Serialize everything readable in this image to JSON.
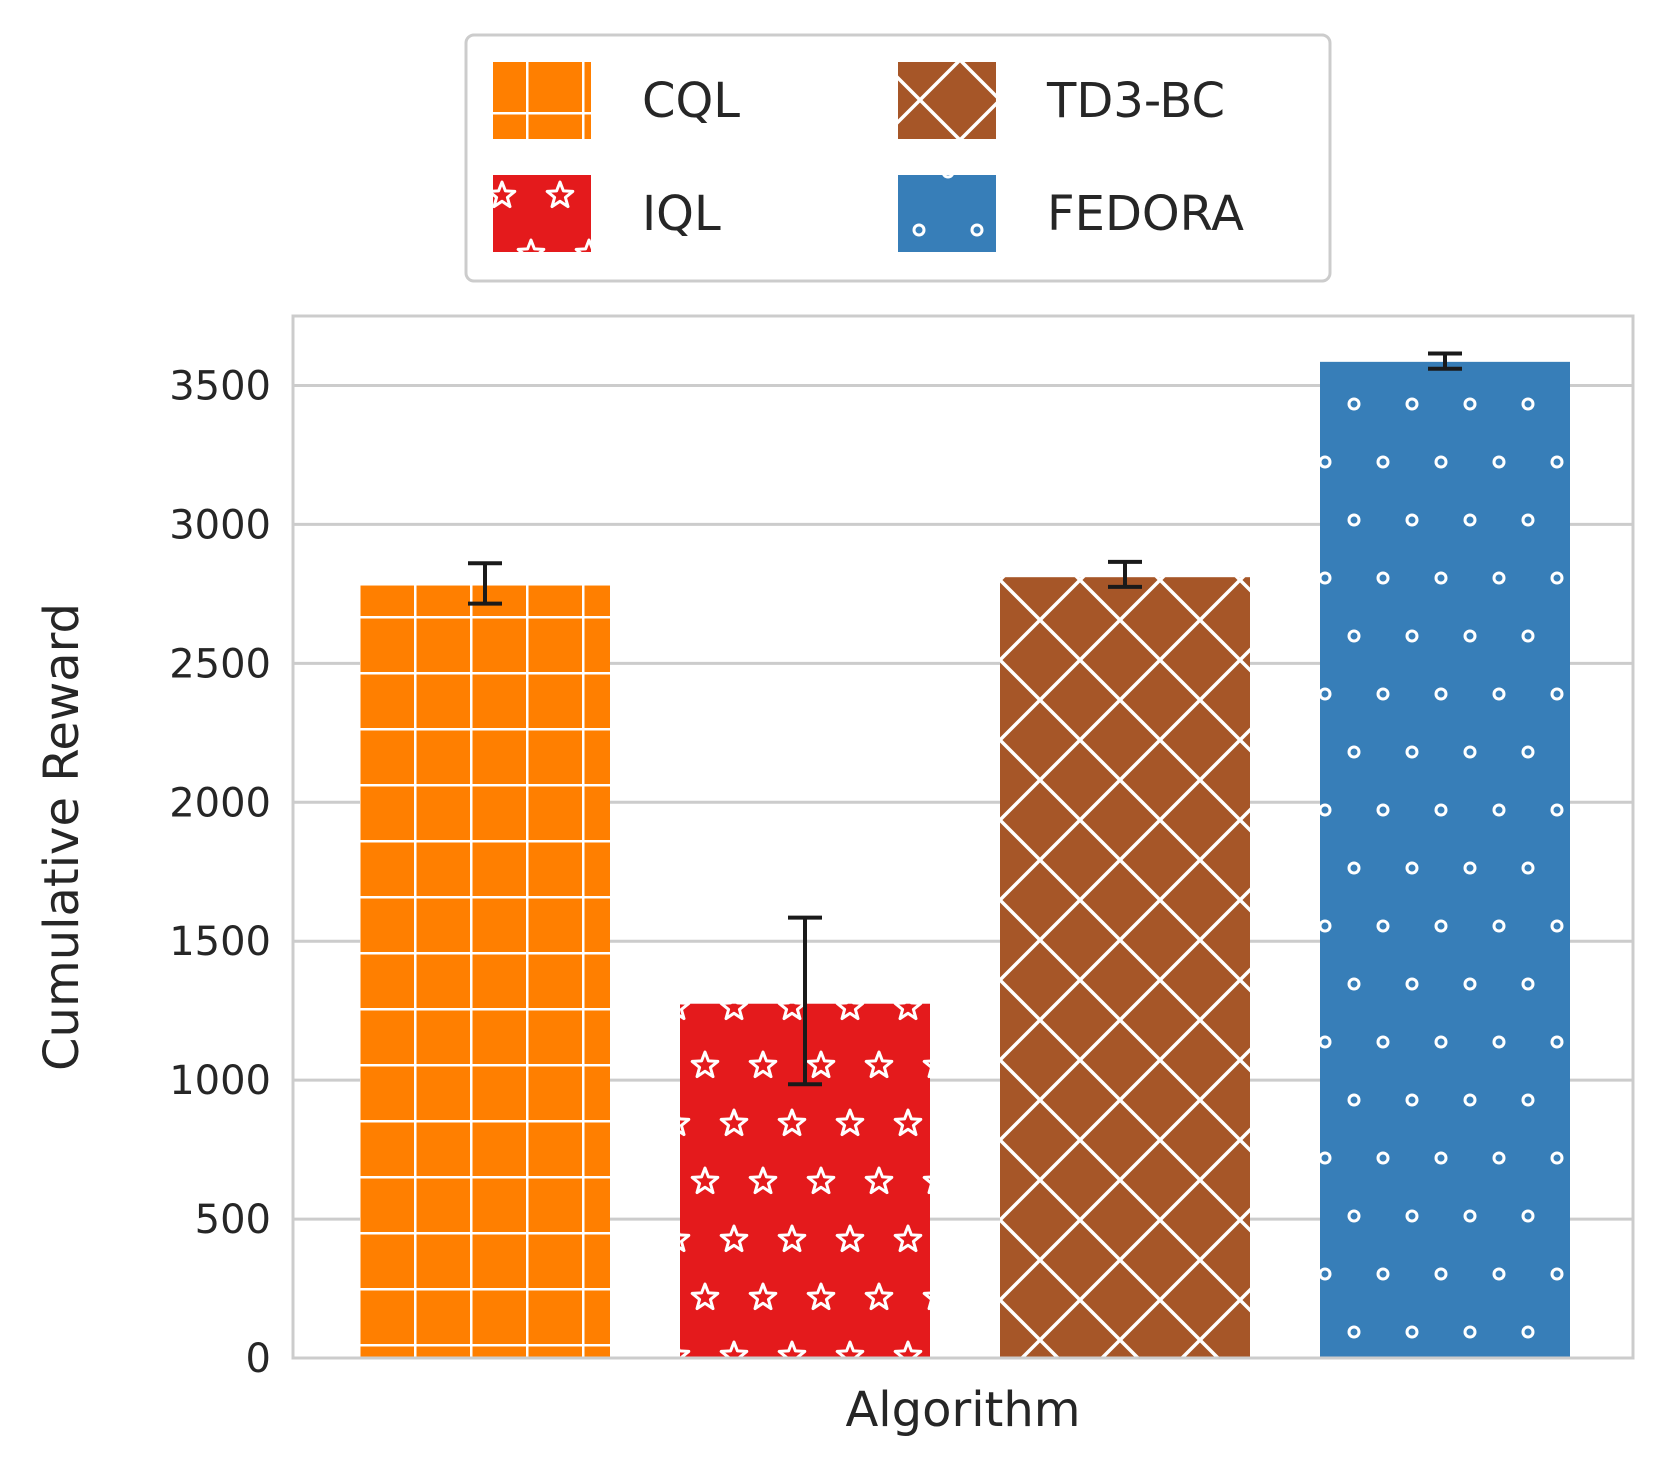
{
  "chart_data": {
    "type": "bar",
    "xlabel": "Algorithm",
    "ylabel": "Cumulative Reward",
    "ylim": [
      0,
      3750
    ],
    "yticks": [
      0,
      500,
      1000,
      1500,
      2000,
      2500,
      3000,
      3500
    ],
    "grid": true,
    "legend_position": "top-center, outside plot",
    "series": [
      {
        "name": "CQL",
        "value": 2780,
        "err_low": 2715,
        "err_high": 2860,
        "color": "#ff7f00",
        "hatch": "grid"
      },
      {
        "name": "IQL",
        "value": 1275,
        "err_low": 985,
        "err_high": 1585,
        "color": "#e41a1c",
        "hatch": "stars"
      },
      {
        "name": "TD3-BC",
        "value": 2810,
        "err_low": 2775,
        "err_high": 2865,
        "color": "#a65628",
        "hatch": "crosshatch"
      },
      {
        "name": "FEDORA",
        "value": 3585,
        "err_low": 3560,
        "err_high": 3615,
        "color": "#377eb8",
        "hatch": "circles"
      }
    ]
  }
}
